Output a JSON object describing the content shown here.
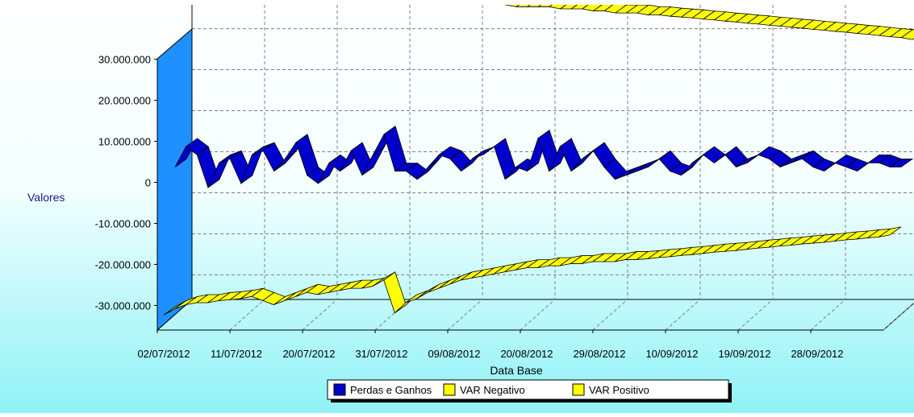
{
  "chart_data": {
    "type": "line",
    "title": "",
    "xlabel": "Data Base",
    "ylabel": "Valores",
    "ylim": [
      -36000000,
      36000000
    ],
    "yticks": [
      30000000,
      20000000,
      10000000,
      0,
      -10000000,
      -20000000,
      -30000000
    ],
    "ytick_labels": [
      "30.000.000",
      "20.000.000",
      "10.000.000",
      "0",
      "-10.000.000",
      "-20.000.000",
      "-30.000.000"
    ],
    "xlim": [
      "2012-07-02",
      "2012-10-01"
    ],
    "xtick_labels": [
      "02/07/2012",
      "11/07/2012",
      "20/07/2012",
      "31/07/2012",
      "09/08/2012",
      "20/08/2012",
      "29/08/2012",
      "10/09/2012",
      "19/09/2012",
      "28/09/2012"
    ],
    "grid": true,
    "three_d": true,
    "legend_position": "bottom-center",
    "series": [
      {
        "name": "Perdas e Ganhos",
        "color": "#0000cc",
        "values": [
          0,
          5000000,
          3000000,
          -5000000,
          1000000,
          2000000,
          -4000000,
          3000000,
          4000000,
          -1000000,
          2000000,
          6000000,
          -2000000,
          -4000000,
          1000000,
          -1000000,
          4000000,
          -2000000,
          3000000,
          8000000,
          -1000000,
          -1000000,
          -3000000,
          0,
          3000000,
          2000000,
          -1000000,
          2000000,
          3000000,
          5000000,
          -3000000,
          0,
          -1000000,
          7000000,
          -1000000,
          5000000,
          -1000000,
          2000000,
          4000000,
          0,
          -3000000,
          -2000000,
          -1000000,
          0,
          2000000,
          -1000000,
          -2000000,
          1000000,
          3000000,
          1000000,
          3000000,
          0,
          1000000,
          3000000,
          2000000,
          0,
          1000000,
          2000000,
          0,
          -1000000,
          1000000,
          0,
          -1000000,
          1000000,
          1000000,
          0,
          0
        ]
      },
      {
        "name": "VAR Negativo",
        "color": "#ffff00",
        "values": [
          -33500000,
          -32000000,
          -31000000,
          -30500000,
          -30500000,
          -30000000,
          -29800000,
          -29500000,
          -29000000,
          -30000000,
          -31000000,
          -30000000,
          -29000000,
          -28000000,
          -28500000,
          -28000000,
          -27500000,
          -27000000,
          -27000000,
          -26500000,
          -25000000,
          -33000000,
          -30500000,
          -29500000,
          -28000000,
          -27000000,
          -26000000,
          -25000000,
          -24500000,
          -24000000,
          -23500000,
          -23000000,
          -22500000,
          -22000000,
          -22000000,
          -21500000,
          -21500000,
          -21000000,
          -21000000,
          -20500000,
          -20500000,
          -20500000,
          -20000000,
          -20000000,
          -19800000,
          -19500000,
          -19300000,
          -19000000,
          -18800000,
          -18500000,
          -18200000,
          -18000000,
          -17800000,
          -17500000,
          -17200000,
          -17000000,
          -16700000,
          -16500000,
          -16200000,
          -16000000,
          -15800000,
          -15500000,
          -15200000,
          -15000000,
          -14700000,
          -14500000,
          -14000000
        ]
      },
      {
        "name": "VAR Positivo",
        "color": "#ffff00",
        "values": [
          42000000,
          41000000,
          40500000,
          40500000,
          40500000,
          40000000,
          40000000,
          40000000,
          40500000,
          40500000,
          41000000,
          40500000,
          40000000,
          39500000,
          39500000,
          39500000,
          39000000,
          39000000,
          39000000,
          38500000,
          38500000,
          44000000,
          41000000,
          40000000,
          39500000,
          39000000,
          38500000,
          38000000,
          37500000,
          37000000,
          36500000,
          36500000,
          36500000,
          36500000,
          36000000,
          36000000,
          36000000,
          35500000,
          35500000,
          35000000,
          35000000,
          35000000,
          34500000,
          34500000,
          34200000,
          34000000,
          33800000,
          33500000,
          33300000,
          33000000,
          32800000,
          32500000,
          32300000,
          32000000,
          31800000,
          31500000,
          31300000,
          31000000,
          30800000,
          30500000,
          30300000,
          30000000,
          29800000,
          29500000,
          29200000,
          29000000,
          28500000
        ]
      }
    ]
  }
}
